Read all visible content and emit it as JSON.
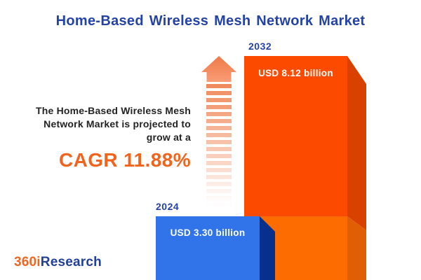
{
  "title": "Home-Based Wireless Mesh Network Market",
  "insight": {
    "lines": [
      "The Home-Based Wireless Mesh",
      "Network Market is projected to",
      "grow at a"
    ],
    "cagr_text": "CAGR 11.88%"
  },
  "chart_data": {
    "type": "bar",
    "title": "Home-Based Wireless Mesh Network Market",
    "categories": [
      "2024",
      "2032"
    ],
    "values": [
      3.3,
      8.12
    ],
    "unit": "USD billion",
    "value_labels": [
      "USD 3.30 billion",
      "USD 8.12 billion"
    ],
    "cagr_percent": 11.88,
    "style": "3d-overlap-bars",
    "legend": "none",
    "axes": "none"
  },
  "icons": {
    "growth_arrow": "striped-up-arrow"
  },
  "colors": {
    "title_blue": "#2443A6",
    "body_text": "#232323",
    "cagr_orange": "#F2641C",
    "bar_2024_front": "#3173E8",
    "bar_2024_side": "#07308C",
    "bar_2032_front": "#FC4A00",
    "bar_2032_front_overlap": "#FC6C00",
    "bar_2032_side": "#D84100",
    "bar_2032_side_overlap": "#E05E04",
    "arrow_orange": "#EF7946",
    "logo_orange": "#F26522",
    "logo_blue": "#21409A",
    "background": "#FFFFFF"
  },
  "logo": {
    "part1": "360i",
    "part2": "Research"
  }
}
